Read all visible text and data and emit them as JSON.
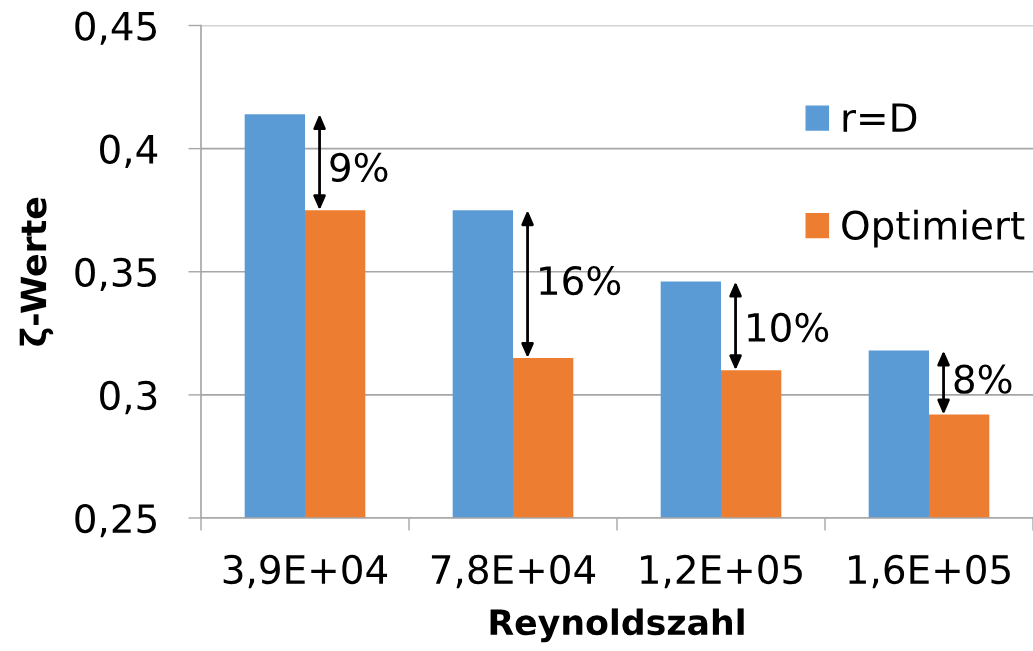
{
  "chart_data": {
    "type": "bar",
    "xlabel": "Reynoldszahl",
    "ylabel": "ζ-Werte",
    "categories": [
      "3,9E+04",
      "7,8E+04",
      "1,2E+05",
      "1,6E+05"
    ],
    "series": [
      {
        "name": "r=D",
        "color": "#5b9bd5",
        "values": [
          0.414,
          0.375,
          0.346,
          0.318
        ]
      },
      {
        "name": "Optimiert",
        "color": "#ed7d31",
        "values": [
          0.375,
          0.315,
          0.31,
          0.292
        ]
      }
    ],
    "ylim": [
      0.25,
      0.45
    ],
    "yticks": [
      {
        "value": 0.25,
        "label": "0,25"
      },
      {
        "value": 0.3,
        "label": "0,3"
      },
      {
        "value": 0.35,
        "label": "0,35"
      },
      {
        "value": 0.4,
        "label": "0,4"
      },
      {
        "value": 0.45,
        "label": "0,45"
      }
    ],
    "grid": "y",
    "legend": "top right",
    "annotations": [
      {
        "text": "9%",
        "x": "3,9E+04",
        "y": 0.391
      },
      {
        "text": "16%",
        "x": "7,8E+04",
        "y": 0.345
      },
      {
        "text": "10%",
        "x": "1,2E+05",
        "y": 0.326
      },
      {
        "text": "8%",
        "x": "1,6E+05",
        "y": 0.305
      }
    ]
  }
}
